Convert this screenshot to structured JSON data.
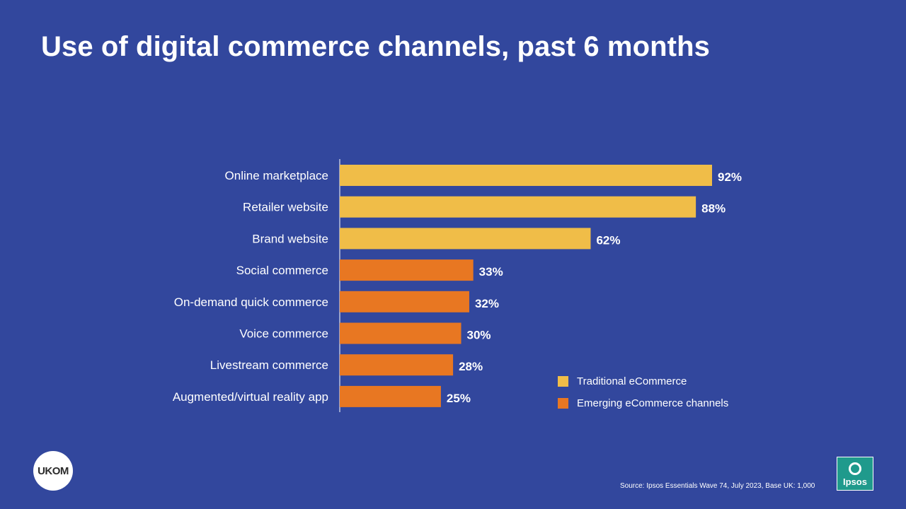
{
  "title": "Use of digital commerce channels, past 6 months",
  "colors": {
    "traditional": "#f0bd48",
    "emerging": "#e87722",
    "axis": "#ffffff"
  },
  "chart_data": {
    "type": "bar",
    "orientation": "horizontal",
    "title": "Use of digital commerce channels, past 6 months",
    "categories": [
      "Online marketplace",
      "Retailer website",
      "Brand website",
      "Social commerce",
      "On-demand quick commerce",
      "Voice commerce",
      "Livestream commerce",
      "Augmented/virtual reality app"
    ],
    "values": [
      92,
      88,
      62,
      33,
      32,
      30,
      28,
      25
    ],
    "value_labels": [
      "92%",
      "88%",
      "62%",
      "33%",
      "32%",
      "30%",
      "28%",
      "25%"
    ],
    "groups": [
      "traditional",
      "traditional",
      "traditional",
      "emerging",
      "emerging",
      "emerging",
      "emerging",
      "emerging"
    ],
    "xlim": [
      0,
      100
    ],
    "unit": "%",
    "grid": false,
    "legend_position": "bottom-right"
  },
  "legend": [
    {
      "key": "traditional",
      "label": "Traditional eCommerce"
    },
    {
      "key": "emerging",
      "label": "Emerging eCommerce channels"
    }
  ],
  "source": "Source: Ipsos Essentials Wave 74, July 2023, Base UK: 1,000",
  "logos": {
    "ukom": "UKOM",
    "ipsos": "Ipsos"
  }
}
